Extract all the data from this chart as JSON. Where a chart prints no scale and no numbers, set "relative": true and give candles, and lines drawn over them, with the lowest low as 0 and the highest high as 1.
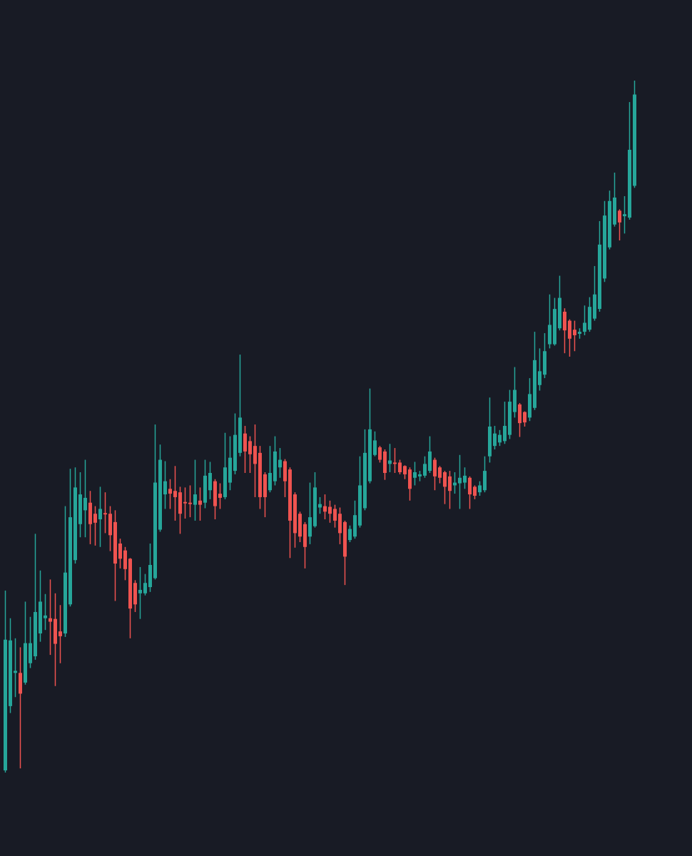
{
  "chart_data": {
    "type": "candlestick",
    "relative": true,
    "categories": [
      null,
      null,
      null,
      null,
      null,
      null,
      null,
      null,
      null,
      null,
      null,
      null,
      null,
      null,
      null,
      null,
      null,
      null,
      null,
      null,
      null,
      null,
      null,
      null,
      null,
      null,
      null,
      null,
      null,
      null,
      null,
      null,
      null,
      null,
      null,
      null,
      null,
      null,
      null,
      null,
      null,
      null,
      null,
      null,
      null,
      null,
      null,
      null,
      null,
      null,
      null,
      null,
      null,
      null,
      null,
      null,
      null,
      null,
      null,
      null,
      null,
      null,
      null,
      null,
      null,
      null,
      null,
      null,
      null,
      null,
      null,
      null,
      null,
      null,
      null,
      null,
      null,
      null,
      null,
      null,
      null,
      null,
      null,
      null,
      null,
      null,
      null,
      null,
      null,
      null,
      null,
      null,
      null,
      null,
      null,
      null,
      null,
      null,
      null,
      null,
      null,
      null,
      null,
      null,
      null,
      null,
      null,
      null,
      null,
      null,
      null,
      null,
      null,
      null,
      null,
      null,
      null,
      null,
      null,
      null,
      null,
      null,
      null,
      null,
      null,
      null,
      null
    ],
    "ohlc": [
      [
        0.003,
        0.263,
        0,
        0.192
      ],
      [
        0.096,
        0.223,
        0.086,
        0.191
      ],
      [
        0.144,
        0.194,
        0.109,
        0.147
      ],
      [
        0.144,
        0.181,
        0.006,
        0.114
      ],
      [
        0.13,
        0.247,
        0.127,
        0.187
      ],
      [
        0.158,
        0.225,
        0.151,
        0.187
      ],
      [
        0.168,
        0.345,
        0.163,
        0.232
      ],
      [
        0.201,
        0.292,
        0.189,
        0.247
      ],
      [
        0.223,
        0.258,
        0.206,
        0.227
      ],
      [
        0.223,
        0.279,
        0.17,
        0.218
      ],
      [
        0.222,
        0.259,
        0.125,
        0.186
      ],
      [
        0.204,
        0.242,
        0.158,
        0.197
      ],
      [
        0.201,
        0.385,
        0.196,
        0.289
      ],
      [
        0.243,
        0.439,
        0.24,
        0.369
      ],
      [
        0.307,
        0.441,
        0.302,
        0.412
      ],
      [
        0.359,
        0.434,
        0.34,
        0.402
      ],
      [
        0.379,
        0.452,
        0.34,
        0.397
      ],
      [
        0.39,
        0.407,
        0.33,
        0.359
      ],
      [
        0.374,
        0.385,
        0.328,
        0.361
      ],
      [
        0.366,
        0.413,
        0.326,
        0.381
      ],
      [
        0.375,
        0.405,
        0.346,
        0.373
      ],
      [
        0.374,
        0.385,
        0.32,
        0.343
      ],
      [
        0.362,
        0.379,
        0.248,
        0.302
      ],
      [
        0.331,
        0.338,
        0.295,
        0.309
      ],
      [
        0.321,
        0.326,
        0.278,
        0.294
      ],
      [
        0.309,
        0.31,
        0.194,
        0.237
      ],
      [
        0.274,
        0.278,
        0.232,
        0.243
      ],
      [
        0.259,
        0.297,
        0.222,
        0.264
      ],
      [
        0.259,
        0.287,
        0.256,
        0.274
      ],
      [
        0.268,
        0.331,
        0.261,
        0.3
      ],
      [
        0.281,
        0.503,
        0.279,
        0.419
      ],
      [
        0.351,
        0.474,
        0.348,
        0.452
      ],
      [
        0.402,
        0.45,
        0.381,
        0.421
      ],
      [
        0.41,
        0.424,
        0.381,
        0.403
      ],
      [
        0.407,
        0.443,
        0.364,
        0.398
      ],
      [
        0.405,
        0.413,
        0.345,
        0.374
      ],
      [
        0.391,
        0.412,
        0.367,
        0.389
      ],
      [
        0.39,
        0.415,
        0.369,
        0.388
      ],
      [
        0.387,
        0.452,
        0.364,
        0.402
      ],
      [
        0.393,
        0.412,
        0.364,
        0.387
      ],
      [
        0.39,
        0.452,
        0.382,
        0.429
      ],
      [
        0.408,
        0.449,
        0.395,
        0.433
      ],
      [
        0.421,
        0.424,
        0.366,
        0.385
      ],
      [
        0.403,
        0.418,
        0.381,
        0.397
      ],
      [
        0.398,
        0.491,
        0.395,
        0.441
      ],
      [
        0.419,
        0.486,
        0.408,
        0.455
      ],
      [
        0.436,
        0.519,
        0.431,
        0.488
      ],
      [
        0.462,
        0.604,
        0.457,
        0.513
      ],
      [
        0.49,
        0.501,
        0.433,
        0.464
      ],
      [
        0.479,
        0.486,
        0.433,
        0.46
      ],
      [
        0.472,
        0.503,
        0.398,
        0.446
      ],
      [
        0.462,
        0.472,
        0.381,
        0.398
      ],
      [
        0.431,
        0.434,
        0.369,
        0.398
      ],
      [
        0.408,
        0.472,
        0.405,
        0.433
      ],
      [
        0.421,
        0.486,
        0.415,
        0.464
      ],
      [
        0.441,
        0.469,
        0.426,
        0.452
      ],
      [
        0.45,
        0.453,
        0.398,
        0.421
      ],
      [
        0.438,
        0.441,
        0.31,
        0.364
      ],
      [
        0.402,
        0.405,
        0.325,
        0.346
      ],
      [
        0.374,
        0.377,
        0.333,
        0.341
      ],
      [
        0.359,
        0.362,
        0.295,
        0.326
      ],
      [
        0.341,
        0.419,
        0.33,
        0.369
      ],
      [
        0.356,
        0.434,
        0.354,
        0.412
      ],
      [
        0.383,
        0.398,
        0.374,
        0.388
      ],
      [
        0.385,
        0.402,
        0.366,
        0.377
      ],
      [
        0.384,
        0.393,
        0.361,
        0.374
      ],
      [
        0.381,
        0.387,
        0.354,
        0.364
      ],
      [
        0.374,
        0.383,
        0.33,
        0.346
      ],
      [
        0.362,
        0.364,
        0.271,
        0.312
      ],
      [
        0.336,
        0.357,
        0.333,
        0.352
      ],
      [
        0.341,
        0.393,
        0.338,
        0.372
      ],
      [
        0.357,
        0.457,
        0.354,
        0.415
      ],
      [
        0.382,
        0.496,
        0.379,
        0.462
      ],
      [
        0.421,
        0.555,
        0.418,
        0.496
      ],
      [
        0.459,
        0.493,
        0.457,
        0.48
      ],
      [
        0.47,
        0.472,
        0.448,
        0.452
      ],
      [
        0.464,
        0.467,
        0.423,
        0.433
      ],
      [
        0.446,
        0.475,
        0.434,
        0.451
      ],
      [
        0.448,
        0.469,
        0.433,
        0.446
      ],
      [
        0.448,
        0.452,
        0.431,
        0.434
      ],
      [
        0.443,
        0.444,
        0.424,
        0.431
      ],
      [
        0.438,
        0.441,
        0.393,
        0.41
      ],
      [
        0.426,
        0.449,
        0.415,
        0.434
      ],
      [
        0.428,
        0.436,
        0.421,
        0.431
      ],
      [
        0.429,
        0.457,
        0.426,
        0.446
      ],
      [
        0.436,
        0.486,
        0.433,
        0.464
      ],
      [
        0.452,
        0.455,
        0.408,
        0.428
      ],
      [
        0.441,
        0.443,
        0.418,
        0.426
      ],
      [
        0.434,
        0.436,
        0.388,
        0.413
      ],
      [
        0.428,
        0.436,
        0.381,
        0.407
      ],
      [
        0.415,
        0.434,
        0.403,
        0.419
      ],
      [
        0.418,
        0.459,
        0.381,
        0.426
      ],
      [
        0.419,
        0.441,
        0.41,
        0.429
      ],
      [
        0.426,
        0.428,
        0.381,
        0.402
      ],
      [
        0.413,
        0.415,
        0.395,
        0.4
      ],
      [
        0.405,
        0.421,
        0.4,
        0.415
      ],
      [
        0.408,
        0.457,
        0.405,
        0.436
      ],
      [
        0.457,
        0.542,
        0.448,
        0.5
      ],
      [
        0.472,
        0.501,
        0.467,
        0.49
      ],
      [
        0.477,
        0.495,
        0.472,
        0.488
      ],
      [
        0.479,
        0.536,
        0.475,
        0.501
      ],
      [
        0.488,
        0.553,
        0.482,
        0.536
      ],
      [
        0.521,
        0.586,
        0.513,
        0.553
      ],
      [
        0.532,
        0.534,
        0.485,
        0.505
      ],
      [
        0.521,
        0.522,
        0.5,
        0.506
      ],
      [
        0.513,
        0.57,
        0.508,
        0.547
      ],
      [
        0.527,
        0.637,
        0.524,
        0.596
      ],
      [
        0.56,
        0.613,
        0.552,
        0.58
      ],
      [
        0.575,
        0.635,
        0.57,
        0.609
      ],
      [
        0.619,
        0.691,
        0.613,
        0.647
      ],
      [
        0.619,
        0.686,
        0.617,
        0.67
      ],
      [
        0.642,
        0.718,
        0.639,
        0.686
      ],
      [
        0.666,
        0.671,
        0.606,
        0.639
      ],
      [
        0.653,
        0.655,
        0.601,
        0.627
      ],
      [
        0.64,
        0.653,
        0.609,
        0.632
      ],
      [
        0.634,
        0.642,
        0.627,
        0.637
      ],
      [
        0.637,
        0.675,
        0.632,
        0.65
      ],
      [
        0.64,
        0.687,
        0.637,
        0.673
      ],
      [
        0.656,
        0.732,
        0.653,
        0.691
      ],
      [
        0.67,
        0.797,
        0.666,
        0.763
      ],
      [
        0.714,
        0.826,
        0.709,
        0.805
      ],
      [
        0.759,
        0.841,
        0.756,
        0.826
      ],
      [
        0.792,
        0.867,
        0.789,
        0.831
      ],
      [
        0.812,
        0.814,
        0.769,
        0.795
      ],
      [
        0.804,
        0.833,
        0.779,
        0.807
      ],
      [
        0.802,
        0.969,
        0.799,
        0.9
      ],
      [
        0.848,
        1,
        0.845,
        0.98
      ]
    ],
    "colors": [
      "#26a69a",
      "#26a69a",
      "#26a69a",
      "#ef5350",
      "#26a69a",
      "#26a69a",
      "#26a69a",
      "#26a69a",
      "#26a69a",
      "#ef5350",
      "#ef5350",
      "#ef5350",
      "#26a69a",
      "#26a69a",
      "#26a69a",
      "#26a69a",
      "#26a69a",
      "#ef5350",
      "#ef5350",
      "#26a69a",
      "#ef5350",
      "#ef5350",
      "#ef5350",
      "#ef5350",
      "#ef5350",
      "#ef5350",
      "#ef5350",
      "#26a69a",
      "#26a69a",
      "#26a69a",
      "#26a69a",
      "#26a69a",
      "#26a69a",
      "#ef5350",
      "#ef5350",
      "#ef5350",
      "#ef5350",
      "#ef5350",
      "#26a69a",
      "#ef5350",
      "#26a69a",
      "#26a69a",
      "#ef5350",
      "#ef5350",
      "#26a69a",
      "#26a69a",
      "#26a69a",
      "#26a69a",
      "#ef5350",
      "#ef5350",
      "#ef5350",
      "#ef5350",
      "#ef5350",
      "#26a69a",
      "#26a69a",
      "#26a69a",
      "#ef5350",
      "#ef5350",
      "#ef5350",
      "#ef5350",
      "#ef5350",
      "#26a69a",
      "#26a69a",
      "#26a69a",
      "#ef5350",
      "#ef5350",
      "#ef5350",
      "#ef5350",
      "#ef5350",
      "#26a69a",
      "#26a69a",
      "#26a69a",
      "#26a69a",
      "#26a69a",
      "#26a69a",
      "#ef5350",
      "#ef5350",
      "#26a69a",
      "#ef5350",
      "#ef5350",
      "#ef5350",
      "#ef5350",
      "#26a69a",
      "#26a69a",
      "#26a69a",
      "#26a69a",
      "#ef5350",
      "#ef5350",
      "#ef5350",
      "#ef5350",
      "#26a69a",
      "#26a69a",
      "#26a69a",
      "#ef5350",
      "#ef5350",
      "#26a69a",
      "#26a69a",
      "#26a69a",
      "#26a69a",
      "#26a69a",
      "#26a69a",
      "#26a69a",
      "#26a69a",
      "#ef5350",
      "#ef5350",
      "#26a69a",
      "#26a69a",
      "#26a69a",
      "#26a69a",
      "#26a69a",
      "#26a69a",
      "#26a69a",
      "#ef5350",
      "#ef5350",
      "#ef5350",
      "#26a69a",
      "#26a69a",
      "#26a69a",
      "#26a69a",
      "#26a69a",
      "#26a69a",
      "#26a69a",
      "#26a69a",
      "#ef5350",
      "#26a69a",
      "#26a69a",
      "#26a69a"
    ]
  }
}
